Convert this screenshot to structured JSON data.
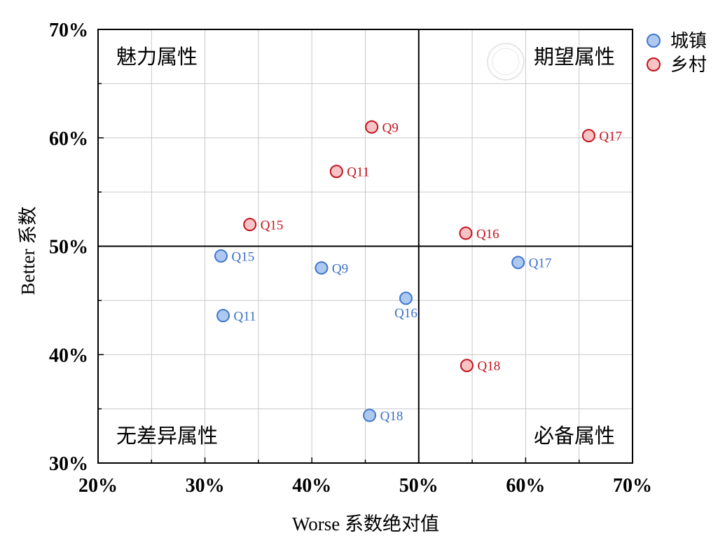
{
  "chart_data": {
    "type": "scatter",
    "xlabel": "Worse 系数绝对值",
    "ylabel": "Better 系数",
    "xlim": [
      20,
      70
    ],
    "ylim": [
      30,
      70
    ],
    "x_ticks": [
      20,
      30,
      40,
      50,
      60,
      70
    ],
    "x_tick_labels": [
      "20%",
      "30%",
      "40%",
      "50%",
      "60%",
      "70%"
    ],
    "y_ticks": [
      30,
      40,
      50,
      60,
      70
    ],
    "y_tick_labels": [
      "30%",
      "40%",
      "50%",
      "60%",
      "70%"
    ],
    "grid": true,
    "grid_step": 5,
    "quadrant_divider": {
      "x": 50,
      "y": 50
    },
    "quadrant_labels": {
      "top_left": "魅力属性",
      "top_right": "期望属性",
      "bottom_left": "无差异属性",
      "bottom_right": "必备属性"
    },
    "legend": {
      "position": "top-right"
    },
    "series": [
      {
        "name": "城镇",
        "marker_fill": "#adc9ef",
        "marker_stroke": "#3d76d0",
        "label_color": "#3a6fc6",
        "points": [
          {
            "label": "Q9",
            "x": 40.9,
            "y": 48.0
          },
          {
            "label": "Q11",
            "x": 31.7,
            "y": 43.6
          },
          {
            "label": "Q15",
            "x": 31.5,
            "y": 49.1
          },
          {
            "label": "Q16",
            "x": 48.8,
            "y": 45.2
          },
          {
            "label": "Q17",
            "x": 59.3,
            "y": 48.5
          },
          {
            "label": "Q18",
            "x": 45.4,
            "y": 34.4
          }
        ]
      },
      {
        "name": "乡村",
        "marker_fill": "#f6c4c4",
        "marker_stroke": "#c4111c",
        "label_color": "#c4111c",
        "points": [
          {
            "label": "Q9",
            "x": 45.6,
            "y": 61.0
          },
          {
            "label": "Q11",
            "x": 42.3,
            "y": 56.9
          },
          {
            "label": "Q15",
            "x": 34.2,
            "y": 52.0
          },
          {
            "label": "Q16",
            "x": 54.4,
            "y": 51.2
          },
          {
            "label": "Q17",
            "x": 65.9,
            "y": 60.2
          },
          {
            "label": "Q18",
            "x": 54.5,
            "y": 39.0
          }
        ]
      }
    ]
  }
}
